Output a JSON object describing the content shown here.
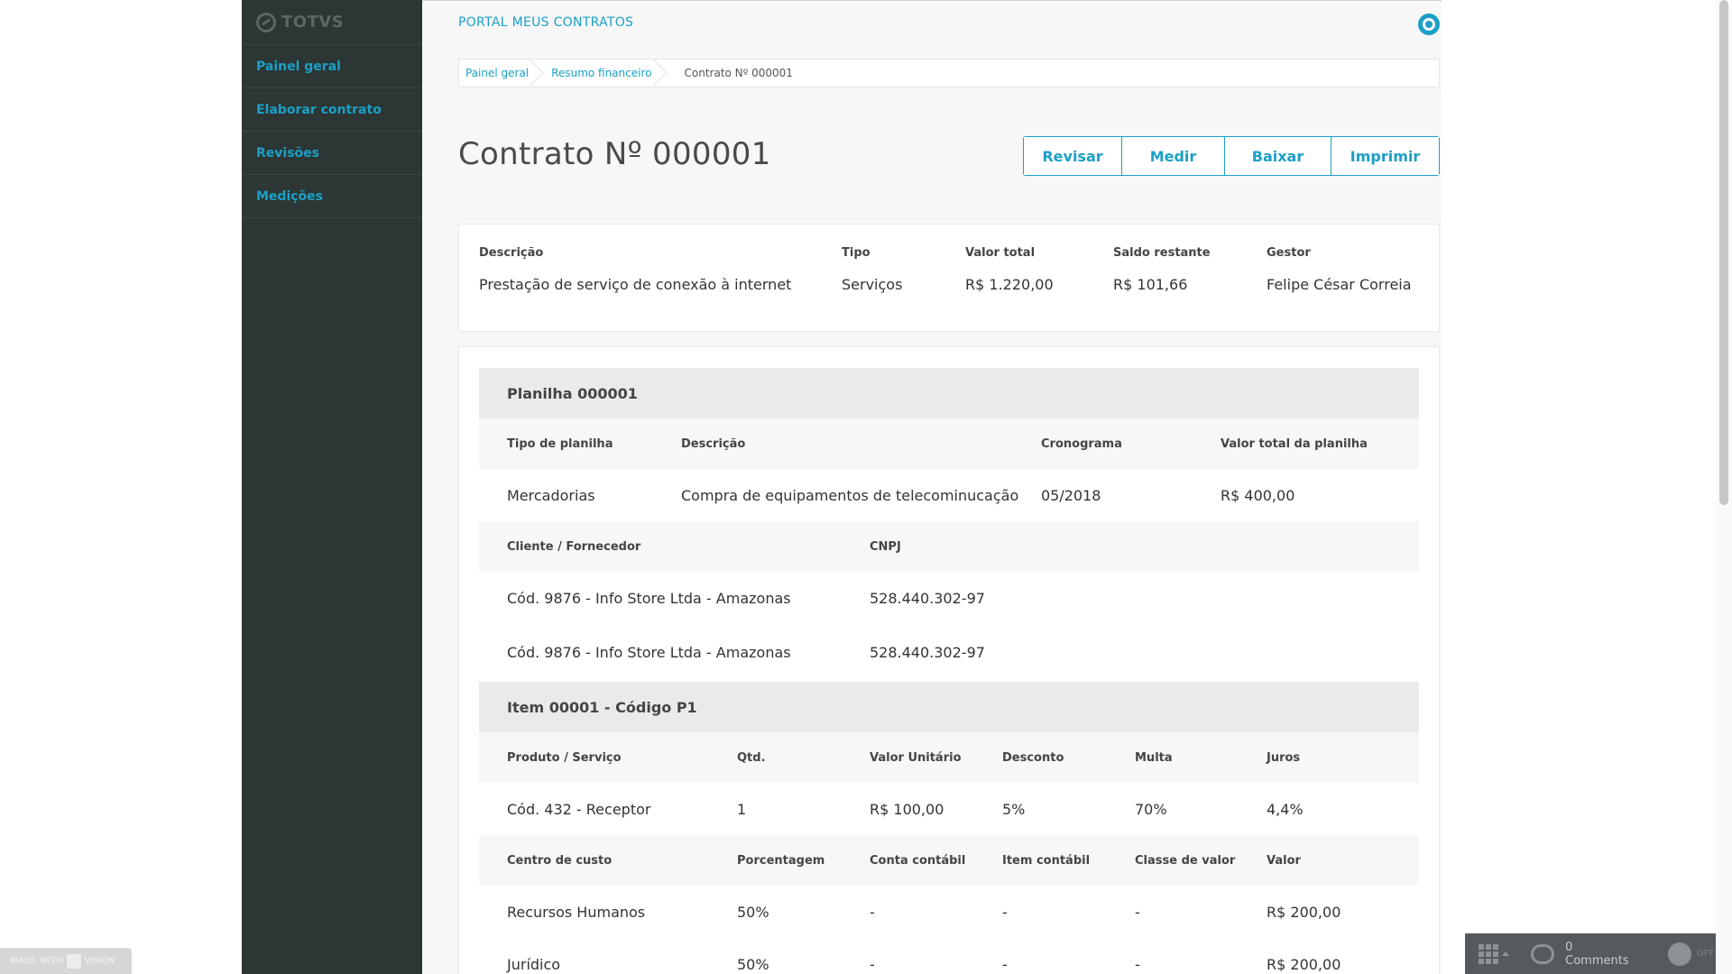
{
  "app": {
    "brand": "TOTVS",
    "portal_title": "PORTAL MEUS CONTRATOS"
  },
  "sidebar": {
    "items": [
      {
        "label": "Painel geral"
      },
      {
        "label": "Elaborar contrato"
      },
      {
        "label": "Revisões"
      },
      {
        "label": "Medições"
      }
    ]
  },
  "breadcrumb": {
    "items": [
      {
        "label": "Painel geral"
      },
      {
        "label": "Resumo financeiro"
      },
      {
        "label": "Contrato Nº 000001"
      }
    ]
  },
  "page": {
    "title": "Contrato Nº 000001"
  },
  "actions": {
    "revisar": "Revisar",
    "medir": "Medir",
    "baixar": "Baixar",
    "imprimir": "Imprimir"
  },
  "summary": {
    "headers": [
      "Descrição",
      "Tipo",
      "Valor total",
      "Saldo restante",
      "Gestor"
    ],
    "values": [
      "Prestação de serviço de conexão à internet",
      "Serviços",
      "R$ 1.220,00",
      "R$ 101,66",
      "Felipe César Correia"
    ]
  },
  "planilha": {
    "title": "Planilha 000001",
    "headers": [
      "Tipo de planilha",
      "Descrição",
      "Cronograma",
      "Valor total da planilha"
    ],
    "values": [
      "Mercadorias",
      "Compra de equipamentos de telecominucação",
      "05/2018",
      "R$ 400,00"
    ],
    "supplier_headers": [
      "Cliente / Fornecedor",
      "CNPJ"
    ],
    "suppliers": [
      [
        "Cód. 9876 - Info Store Ltda - Amazonas",
        "528.440.302-97"
      ],
      [
        "Cód. 9876 - Info Store Ltda - Amazonas",
        "528.440.302-97"
      ]
    ]
  },
  "item": {
    "title": "Item 00001 - Código P1",
    "headers": [
      "Produto / Serviço",
      "Qtd.",
      "Valor Unitário",
      "Desconto",
      "Multa",
      "Juros"
    ],
    "values": [
      "Cód. 432 - Receptor",
      "1",
      "R$ 100,00",
      "5%",
      "70%",
      "4,4%"
    ],
    "cost_headers": [
      "Centro de custo",
      "Porcentagem",
      "Conta contábil",
      "Item contábil",
      "Classe de valor",
      "Valor"
    ],
    "cost_rows": [
      [
        "Recursos Humanos",
        "50%",
        "-",
        "-",
        "-",
        "R$ 200,00"
      ],
      [
        "Jurídico",
        "50%",
        "-",
        "-",
        "-",
        "R$ 200,00"
      ]
    ]
  },
  "overlay": {
    "badge_left": "MADE WITH",
    "badge_right": "VISION",
    "comments": "0 Comments",
    "toggle": "OFF"
  }
}
